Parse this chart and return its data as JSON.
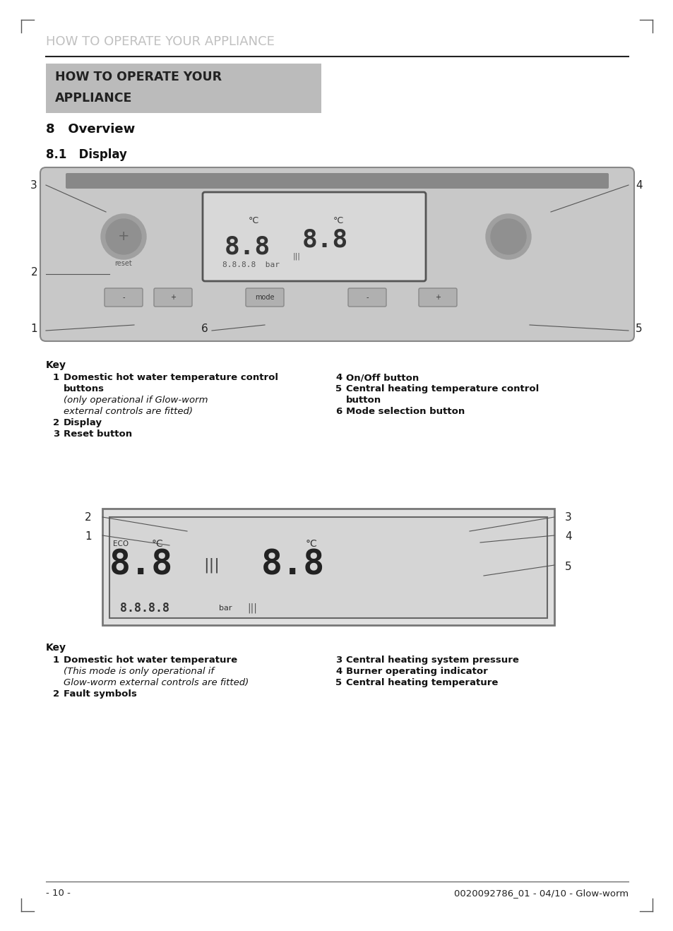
{
  "page_bg": "#ffffff",
  "top_header_text": "HOW TO OPERATE YOUR APPLIANCE",
  "top_header_color": "#c8c8c8",
  "top_header_text_color": "#222222",
  "header_line_color": "#222222",
  "gray_box_bg": "#bbbbbb",
  "section_title": "8   Overview",
  "subsection_title": "8.1   Display",
  "footer_left": "- 10 -",
  "footer_right": "0020092786_01 - 04/10 - Glow-worm"
}
